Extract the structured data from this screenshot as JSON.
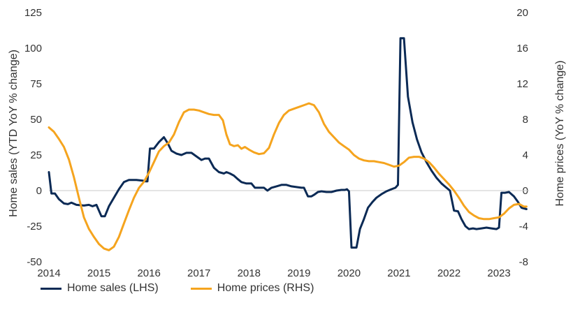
{
  "chart_data": {
    "type": "line",
    "title": "",
    "xlabel": "",
    "ylabel_left": "Home sales (YTD YoY % change)",
    "ylabel_right": "Home prices (YoY % change)",
    "ylim_left": [
      -50,
      125
    ],
    "ylim_right": [
      -8,
      20
    ],
    "xlim": [
      2014.0,
      2023.6
    ],
    "left_ticks": [
      "125",
      "100",
      "75",
      "50",
      "25",
      "0",
      "-25",
      "-50"
    ],
    "right_ticks": [
      "20",
      "16",
      "12",
      "8",
      "4",
      "0",
      "-4",
      "-8"
    ],
    "x_ticks": [
      "2014",
      "2015",
      "2016",
      "2017",
      "2018",
      "2019",
      "2020",
      "2021",
      "2022",
      "2023"
    ],
    "grid": false,
    "legend_position": "bottom-left",
    "series": [
      {
        "name": "Home sales (LHS)",
        "axis": "left",
        "color": "#0b2a55",
        "points": [
          [
            2014.0,
            13
          ],
          [
            2014.05,
            -2
          ],
          [
            2014.12,
            -2
          ],
          [
            2014.2,
            -6
          ],
          [
            2014.3,
            -9
          ],
          [
            2014.38,
            -9.5
          ],
          [
            2014.45,
            -8.5
          ],
          [
            2014.55,
            -10
          ],
          [
            2014.7,
            -10.5
          ],
          [
            2014.8,
            -10
          ],
          [
            2014.87,
            -11
          ],
          [
            2014.95,
            -10
          ],
          [
            2015.05,
            -18
          ],
          [
            2015.12,
            -18
          ],
          [
            2015.2,
            -11
          ],
          [
            2015.3,
            -5
          ],
          [
            2015.4,
            1
          ],
          [
            2015.5,
            6
          ],
          [
            2015.6,
            7.5
          ],
          [
            2015.75,
            7.5
          ],
          [
            2015.88,
            7
          ],
          [
            2015.93,
            6.5
          ],
          [
            2015.97,
            6.5
          ],
          [
            2016.02,
            29.5
          ],
          [
            2016.1,
            29.5
          ],
          [
            2016.2,
            34
          ],
          [
            2016.3,
            37.5
          ],
          [
            2016.38,
            33
          ],
          [
            2016.45,
            28
          ],
          [
            2016.55,
            26
          ],
          [
            2016.65,
            25
          ],
          [
            2016.75,
            26.5
          ],
          [
            2016.85,
            26.5
          ],
          [
            2016.95,
            24
          ],
          [
            2017.05,
            21.5
          ],
          [
            2017.12,
            22.5
          ],
          [
            2017.2,
            22.5
          ],
          [
            2017.3,
            16
          ],
          [
            2017.4,
            13
          ],
          [
            2017.5,
            12
          ],
          [
            2017.55,
            13
          ],
          [
            2017.62,
            12
          ],
          [
            2017.7,
            10.5
          ],
          [
            2017.78,
            8
          ],
          [
            2017.85,
            6
          ],
          [
            2017.95,
            5
          ],
          [
            2018.05,
            5
          ],
          [
            2018.12,
            2
          ],
          [
            2018.2,
            2
          ],
          [
            2018.3,
            2
          ],
          [
            2018.37,
            0
          ],
          [
            2018.45,
            2
          ],
          [
            2018.55,
            3
          ],
          [
            2018.65,
            4
          ],
          [
            2018.75,
            4
          ],
          [
            2018.85,
            3
          ],
          [
            2018.95,
            2.5
          ],
          [
            2019.05,
            2
          ],
          [
            2019.1,
            2
          ],
          [
            2019.18,
            -4
          ],
          [
            2019.25,
            -4
          ],
          [
            2019.3,
            -3
          ],
          [
            2019.38,
            -1
          ],
          [
            2019.45,
            -0.5
          ],
          [
            2019.55,
            -1
          ],
          [
            2019.65,
            -1
          ],
          [
            2019.75,
            0
          ],
          [
            2019.85,
            0.5
          ],
          [
            2019.92,
            0.5
          ],
          [
            2019.96,
            1
          ],
          [
            2020.0,
            -0.5
          ],
          [
            2020.05,
            -40
          ],
          [
            2020.15,
            -40
          ],
          [
            2020.22,
            -27
          ],
          [
            2020.3,
            -20
          ],
          [
            2020.38,
            -12
          ],
          [
            2020.47,
            -8
          ],
          [
            2020.55,
            -5
          ],
          [
            2020.65,
            -2.5
          ],
          [
            2020.75,
            -0.5
          ],
          [
            2020.85,
            1
          ],
          [
            2020.93,
            2
          ],
          [
            2020.98,
            4
          ],
          [
            2021.03,
            107
          ],
          [
            2021.1,
            107
          ],
          [
            2021.18,
            66
          ],
          [
            2021.27,
            48
          ],
          [
            2021.36,
            36
          ],
          [
            2021.45,
            27
          ],
          [
            2021.55,
            20
          ],
          [
            2021.65,
            14
          ],
          [
            2021.75,
            9
          ],
          [
            2021.85,
            5
          ],
          [
            2021.95,
            2
          ],
          [
            2022.02,
            0
          ],
          [
            2022.1,
            -14
          ],
          [
            2022.18,
            -14.5
          ],
          [
            2022.25,
            -20
          ],
          [
            2022.33,
            -25
          ],
          [
            2022.4,
            -27
          ],
          [
            2022.48,
            -26.5
          ],
          [
            2022.55,
            -27
          ],
          [
            2022.65,
            -26.5
          ],
          [
            2022.75,
            -26
          ],
          [
            2022.85,
            -26.5
          ],
          [
            2022.95,
            -27
          ],
          [
            2023.0,
            -26
          ],
          [
            2023.05,
            -1.5
          ],
          [
            2023.12,
            -1.5
          ],
          [
            2023.2,
            -1
          ],
          [
            2023.3,
            -4
          ],
          [
            2023.38,
            -8
          ],
          [
            2023.45,
            -12
          ],
          [
            2023.55,
            -13
          ]
        ]
      },
      {
        "name": "Home prices (RHS)",
        "axis": "right",
        "color": "#f5a41e",
        "points": [
          [
            2014.0,
            7.1
          ],
          [
            2014.1,
            6.6
          ],
          [
            2014.2,
            5.8
          ],
          [
            2014.3,
            4.9
          ],
          [
            2014.4,
            3.5
          ],
          [
            2014.5,
            1.5
          ],
          [
            2014.6,
            -0.8
          ],
          [
            2014.7,
            -3.0
          ],
          [
            2014.8,
            -4.3
          ],
          [
            2014.9,
            -5.2
          ],
          [
            2015.0,
            -6.0
          ],
          [
            2015.1,
            -6.5
          ],
          [
            2015.2,
            -6.7
          ],
          [
            2015.3,
            -6.3
          ],
          [
            2015.4,
            -5.2
          ],
          [
            2015.5,
            -3.7
          ],
          [
            2015.6,
            -2.2
          ],
          [
            2015.7,
            -0.8
          ],
          [
            2015.8,
            0.3
          ],
          [
            2015.9,
            1.0
          ],
          [
            2016.0,
            2.0
          ],
          [
            2016.1,
            3.2
          ],
          [
            2016.2,
            4.4
          ],
          [
            2016.3,
            5.0
          ],
          [
            2016.4,
            5.4
          ],
          [
            2016.5,
            6.3
          ],
          [
            2016.6,
            7.7
          ],
          [
            2016.7,
            8.8
          ],
          [
            2016.8,
            9.1
          ],
          [
            2016.9,
            9.1
          ],
          [
            2017.0,
            9.0
          ],
          [
            2017.1,
            8.8
          ],
          [
            2017.2,
            8.6
          ],
          [
            2017.3,
            8.5
          ],
          [
            2017.4,
            8.5
          ],
          [
            2017.48,
            7.9
          ],
          [
            2017.55,
            6.3
          ],
          [
            2017.62,
            5.2
          ],
          [
            2017.7,
            5.0
          ],
          [
            2017.78,
            5.1
          ],
          [
            2017.85,
            4.7
          ],
          [
            2017.92,
            4.9
          ],
          [
            2018.0,
            4.6
          ],
          [
            2018.1,
            4.3
          ],
          [
            2018.2,
            4.1
          ],
          [
            2018.3,
            4.2
          ],
          [
            2018.4,
            4.8
          ],
          [
            2018.5,
            6.3
          ],
          [
            2018.6,
            7.6
          ],
          [
            2018.7,
            8.5
          ],
          [
            2018.8,
            9.0
          ],
          [
            2018.9,
            9.2
          ],
          [
            2019.0,
            9.4
          ],
          [
            2019.1,
            9.6
          ],
          [
            2019.2,
            9.8
          ],
          [
            2019.3,
            9.6
          ],
          [
            2019.4,
            8.8
          ],
          [
            2019.5,
            7.5
          ],
          [
            2019.6,
            6.6
          ],
          [
            2019.7,
            6.0
          ],
          [
            2019.8,
            5.4
          ],
          [
            2019.9,
            5.0
          ],
          [
            2020.0,
            4.6
          ],
          [
            2020.1,
            4.0
          ],
          [
            2020.2,
            3.6
          ],
          [
            2020.3,
            3.4
          ],
          [
            2020.4,
            3.3
          ],
          [
            2020.5,
            3.3
          ],
          [
            2020.6,
            3.2
          ],
          [
            2020.7,
            3.1
          ],
          [
            2020.8,
            2.9
          ],
          [
            2020.9,
            2.7
          ],
          [
            2021.0,
            2.8
          ],
          [
            2021.1,
            3.2
          ],
          [
            2021.2,
            3.7
          ],
          [
            2021.3,
            3.8
          ],
          [
            2021.4,
            3.8
          ],
          [
            2021.5,
            3.6
          ],
          [
            2021.6,
            3.2
          ],
          [
            2021.7,
            2.6
          ],
          [
            2021.8,
            1.9
          ],
          [
            2021.9,
            1.3
          ],
          [
            2022.0,
            0.7
          ],
          [
            2022.1,
            0.0
          ],
          [
            2022.2,
            -0.8
          ],
          [
            2022.3,
            -1.7
          ],
          [
            2022.4,
            -2.4
          ],
          [
            2022.5,
            -2.8
          ],
          [
            2022.6,
            -3.1
          ],
          [
            2022.7,
            -3.2
          ],
          [
            2022.8,
            -3.2
          ],
          [
            2022.9,
            -3.1
          ],
          [
            2023.0,
            -3.0
          ],
          [
            2023.1,
            -2.6
          ],
          [
            2023.2,
            -2.0
          ],
          [
            2023.3,
            -1.6
          ],
          [
            2023.4,
            -1.5
          ],
          [
            2023.5,
            -1.8
          ],
          [
            2023.55,
            -1.8
          ]
        ]
      }
    ]
  }
}
